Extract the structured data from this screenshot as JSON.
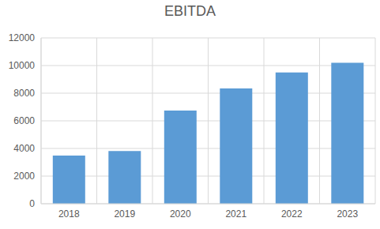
{
  "chart_data": {
    "type": "bar",
    "title": "EBITDA",
    "categories": [
      "2018",
      "2019",
      "2020",
      "2021",
      "2022",
      "2023"
    ],
    "values": [
      3480,
      3820,
      6750,
      8350,
      9500,
      10200
    ],
    "color": "#5b9bd5",
    "ylim": [
      0,
      12000
    ],
    "yticks": [
      0,
      2000,
      4000,
      6000,
      8000,
      10000,
      12000
    ],
    "grid": true
  }
}
